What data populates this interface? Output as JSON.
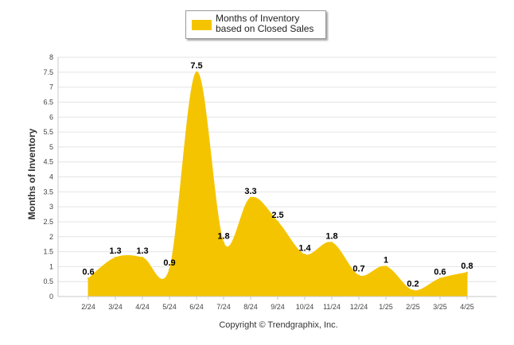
{
  "chart_data": {
    "type": "area",
    "categories": [
      "2/24",
      "3/24",
      "4/24",
      "5/24",
      "6/24",
      "7/24",
      "8/24",
      "9/24",
      "10/24",
      "11/24",
      "12/24",
      "1/25",
      "2/25",
      "3/25",
      "4/25"
    ],
    "series": [
      {
        "name": "Months of Inventory based on Closed Sales",
        "values": [
          0.6,
          1.3,
          1.3,
          0.9,
          7.5,
          1.8,
          3.3,
          2.5,
          1.4,
          1.8,
          0.7,
          1,
          0.2,
          0.6,
          0.8
        ],
        "labels": [
          "0.6",
          "1.3",
          "1.3",
          "0.9",
          "7.5",
          "1.8",
          "3.3",
          "2.5",
          "1.4",
          "1.8",
          "0.7",
          "1",
          "0.2",
          "0.6",
          "0.8"
        ]
      }
    ],
    "ylabel": "Months of Inventory",
    "ylim": [
      0,
      8
    ],
    "yticks": [
      "0",
      "0.5",
      "1",
      "1.5",
      "2",
      "2.5",
      "3",
      "3.5",
      "4",
      "4.5",
      "5",
      "5.5",
      "6",
      "6.5",
      "7",
      "7.5",
      "8"
    ],
    "grid": true,
    "legend_position": "top-center",
    "colors": {
      "area": "#f5c400",
      "grid": "#e4e4e4",
      "axis": "#c8c8c8",
      "text": "#333333"
    }
  },
  "footer": {
    "copyright": "Copyright © Trendgraphix, Inc."
  }
}
